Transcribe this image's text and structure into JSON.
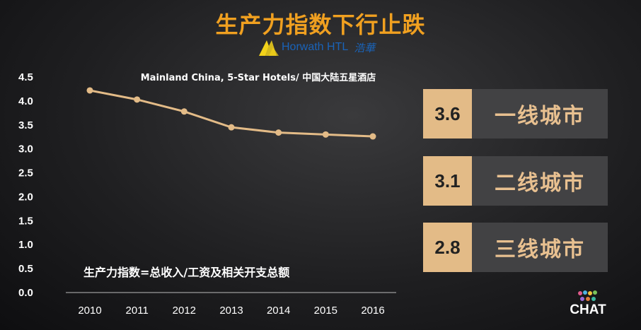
{
  "title": "生产力指数下行止跌",
  "logo": {
    "brand": "Horwath HTL",
    "cn": "浩華"
  },
  "chart_data": {
    "type": "line",
    "subtitle": "Mainland China, 5-Star Hotels/ 中国大陆五星酒店",
    "x": [
      "2010",
      "2011",
      "2012",
      "2013",
      "2014",
      "2015",
      "2016"
    ],
    "series": [
      {
        "values": [
          4.22,
          4.03,
          3.78,
          3.45,
          3.34,
          3.3,
          3.26
        ]
      }
    ],
    "yticks": [
      "0.0",
      "0.5",
      "1.0",
      "1.5",
      "2.0",
      "2.5",
      "3.0",
      "3.5",
      "4.0",
      "4.5"
    ],
    "ylim": [
      0,
      4.5
    ],
    "annotation": "生产力指数=总收入/工资及相关开支总额",
    "line_color": "#e3bb87",
    "grid": false
  },
  "cards": [
    {
      "value": "3.6",
      "label": "一线城市"
    },
    {
      "value": "3.1",
      "label": "二线城市"
    },
    {
      "value": "2.8",
      "label": "三线城市"
    }
  ],
  "badge": {
    "text": "CHAT"
  }
}
